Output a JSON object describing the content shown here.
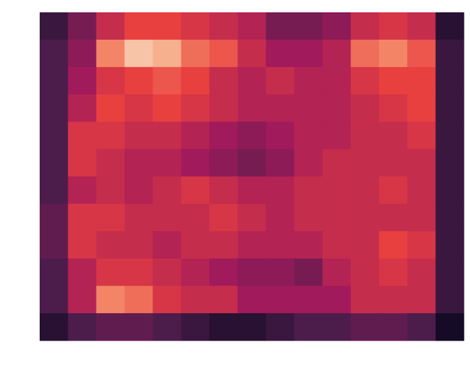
{
  "chart_data": {
    "type": "heatmap",
    "zlim": [
      0,
      1
    ],
    "colormap": [
      "#03051a",
      "#4c1d4b",
      "#a11a5b",
      "#e83f3f",
      "#f69c73",
      "#faebdd"
    ],
    "z": [
      [
        0.15,
        0.3,
        0.5,
        0.6,
        0.6,
        0.55,
        0.5,
        0.45,
        0.3,
        0.3,
        0.35,
        0.5,
        0.55,
        0.5,
        0.1
      ],
      [
        0.2,
        0.35,
        0.75,
        0.9,
        0.85,
        0.7,
        0.65,
        0.5,
        0.4,
        0.4,
        0.45,
        0.7,
        0.75,
        0.65,
        0.15
      ],
      [
        0.2,
        0.4,
        0.55,
        0.6,
        0.65,
        0.6,
        0.5,
        0.45,
        0.5,
        0.45,
        0.45,
        0.55,
        0.6,
        0.6,
        0.15
      ],
      [
        0.2,
        0.45,
        0.6,
        0.55,
        0.6,
        0.55,
        0.5,
        0.45,
        0.45,
        0.45,
        0.45,
        0.5,
        0.55,
        0.6,
        0.15
      ],
      [
        0.2,
        0.55,
        0.55,
        0.5,
        0.5,
        0.45,
        0.4,
        0.35,
        0.4,
        0.45,
        0.45,
        0.5,
        0.5,
        0.55,
        0.15
      ],
      [
        0.2,
        0.55,
        0.5,
        0.45,
        0.45,
        0.4,
        0.35,
        0.3,
        0.35,
        0.45,
        0.5,
        0.5,
        0.5,
        0.5,
        0.15
      ],
      [
        0.2,
        0.45,
        0.5,
        0.45,
        0.5,
        0.55,
        0.5,
        0.45,
        0.45,
        0.5,
        0.5,
        0.5,
        0.55,
        0.5,
        0.15
      ],
      [
        0.25,
        0.55,
        0.55,
        0.5,
        0.5,
        0.5,
        0.55,
        0.5,
        0.45,
        0.5,
        0.5,
        0.5,
        0.5,
        0.5,
        0.15
      ],
      [
        0.25,
        0.55,
        0.5,
        0.5,
        0.45,
        0.5,
        0.5,
        0.45,
        0.45,
        0.45,
        0.5,
        0.5,
        0.6,
        0.55,
        0.15
      ],
      [
        0.2,
        0.45,
        0.55,
        0.55,
        0.5,
        0.45,
        0.4,
        0.35,
        0.35,
        0.3,
        0.45,
        0.5,
        0.55,
        0.5,
        0.15
      ],
      [
        0.2,
        0.45,
        0.75,
        0.7,
        0.55,
        0.5,
        0.5,
        0.4,
        0.4,
        0.4,
        0.4,
        0.5,
        0.5,
        0.5,
        0.15
      ],
      [
        0.1,
        0.2,
        0.25,
        0.25,
        0.2,
        0.15,
        0.1,
        0.1,
        0.15,
        0.2,
        0.2,
        0.25,
        0.25,
        0.2,
        0.05
      ]
    ]
  }
}
